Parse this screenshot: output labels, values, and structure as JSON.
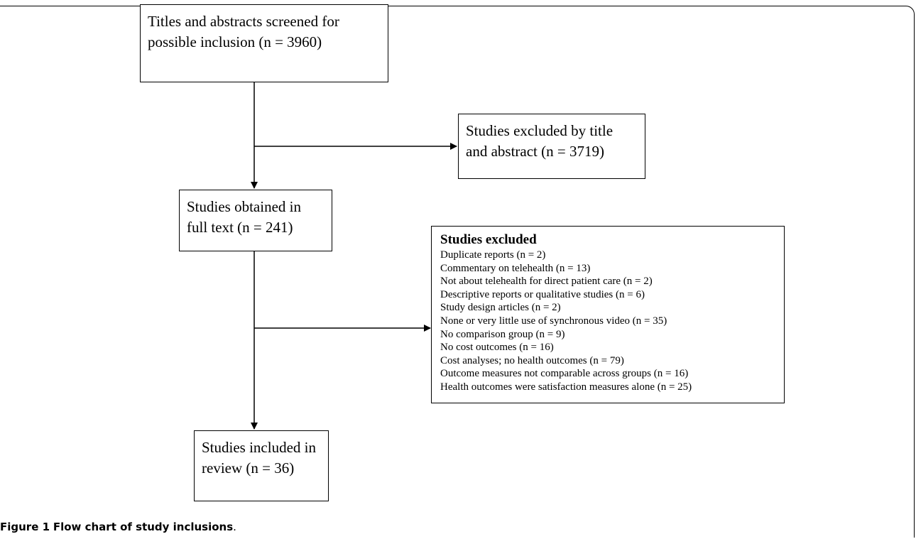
{
  "boxes": {
    "screened": "Titles and abstracts screened for possible inclusion (n = 3960)",
    "excluded_title": "Studies excluded by title and abstract (n = 3719)",
    "full_text": "Studies obtained in full text (n = 241)",
    "included": "Studies included in review (n = 36)"
  },
  "excluded_detail": {
    "title": "Studies excluded",
    "items": [
      "Duplicate reports (n = 2)",
      "Commentary on telehealth (n = 13)",
      "Not about telehealth for direct patient care (n = 2)",
      "Descriptive reports or qualitative studies (n = 6)",
      "Study design articles (n = 2)",
      "None or very little use of synchronous video (n = 35)",
      "No comparison group (n = 9)",
      "No cost outcomes (n = 16)",
      "Cost analyses; no health outcomes (n = 79)",
      "Outcome measures not comparable across groups (n = 16)",
      "Health outcomes were satisfaction measures alone (n = 25)"
    ]
  },
  "caption": {
    "label": "Figure 1",
    "text": "Flow chart of study inclusions"
  }
}
